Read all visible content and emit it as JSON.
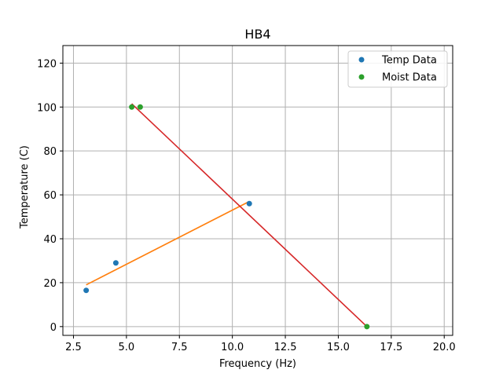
{
  "chart_data": {
    "type": "scatter",
    "title": "HB4",
    "xlabel": "Frequency (Hz)",
    "ylabel": "Temperature (C)",
    "xlim": [
      2.0,
      20.4
    ],
    "ylim": [
      -4,
      128
    ],
    "xticks": [
      2.5,
      5.0,
      7.5,
      10.0,
      12.5,
      15.0,
      17.5,
      20.0
    ],
    "xtick_labels": [
      "2.5",
      "5.0",
      "7.5",
      "10.0",
      "12.5",
      "15.0",
      "17.5",
      "20.0"
    ],
    "yticks": [
      0,
      20,
      40,
      60,
      80,
      100,
      120
    ],
    "ytick_labels": [
      "0",
      "20",
      "40",
      "60",
      "80",
      "100",
      "120"
    ],
    "grid": true,
    "legend": "top-right",
    "series": [
      {
        "name": "Temp Data",
        "kind": "points",
        "color": "#1f77b4",
        "x": [
          3.1,
          4.5,
          10.8
        ],
        "y": [
          16.5,
          29,
          56
        ]
      },
      {
        "name": "Moist Data",
        "kind": "points",
        "color": "#2ca02c",
        "x": [
          5.25,
          5.65,
          16.35
        ],
        "y": [
          100,
          100,
          0
        ]
      },
      {
        "kind": "line",
        "color": "#ff7f0e",
        "x": [
          3.1,
          10.8
        ],
        "y": [
          19,
          57
        ]
      },
      {
        "kind": "line",
        "color": "#d62728",
        "x": [
          5.25,
          16.35
        ],
        "y": [
          101.5,
          0
        ]
      }
    ]
  }
}
